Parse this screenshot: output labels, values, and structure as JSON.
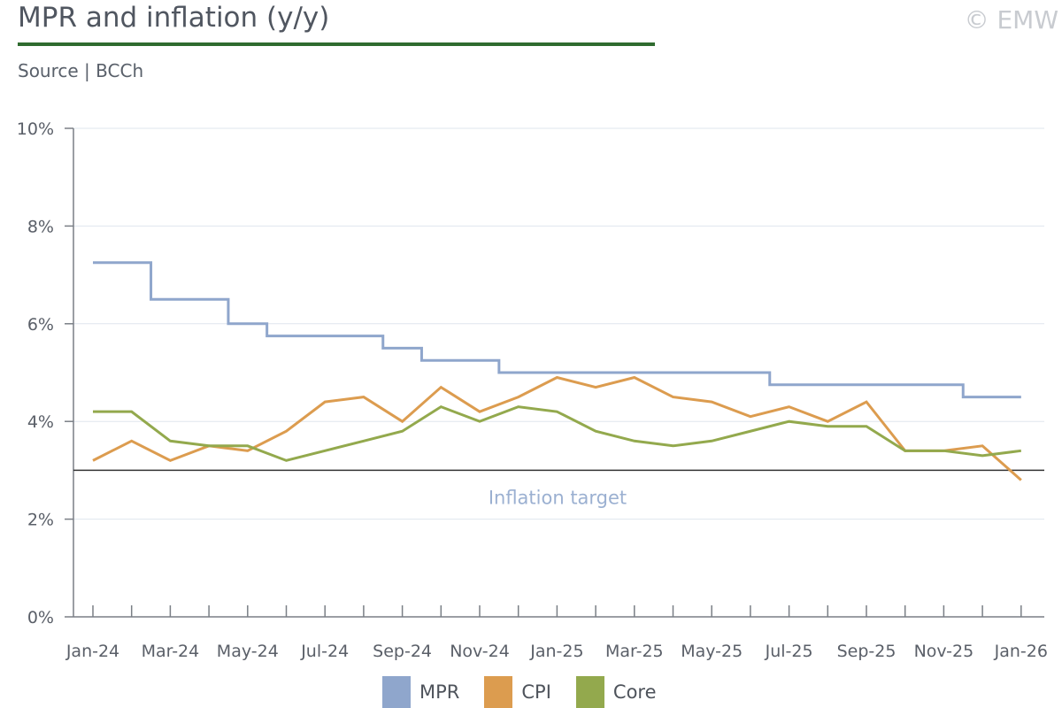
{
  "header": {
    "title": "MPR and inflation (y/y)",
    "subtitle": "Source | BCCh",
    "copyright": "© EMW"
  },
  "chart_data": {
    "type": "line",
    "title": "MPR and inflation (y/y)",
    "ylim": [
      0,
      10
    ],
    "yticks": [
      "0%",
      "2%",
      "4%",
      "6%",
      "8%",
      "10%"
    ],
    "x_labels": [
      "Jan-24",
      "Mar-24",
      "May-24",
      "Jul-24",
      "Sep-24",
      "Nov-24",
      "Jan-25",
      "Mar-25",
      "May-25",
      "Jul-25",
      "Sep-25",
      "Nov-25",
      "Jan-26"
    ],
    "grid": true,
    "legend_position": "bottom",
    "reference_line": {
      "label": "Inflation target",
      "value": 3
    },
    "series": [
      {
        "name": "MPR",
        "color": "#8fa6cc",
        "step": true,
        "points": [
          {
            "x": "Jan-24",
            "y": 7.25
          },
          {
            "x": "Feb-24",
            "y": 7.25
          },
          {
            "x": "Mar-24",
            "y": 6.5
          },
          {
            "x": "Apr-24",
            "y": 6.5
          },
          {
            "x": "May-24",
            "y": 6.0
          },
          {
            "x": "Jun-24",
            "y": 5.75
          },
          {
            "x": "Jul-24",
            "y": 5.75
          },
          {
            "x": "Aug-24",
            "y": 5.75
          },
          {
            "x": "Sep-24",
            "y": 5.5
          },
          {
            "x": "Oct-24",
            "y": 5.25
          },
          {
            "x": "Nov-24",
            "y": 5.25
          },
          {
            "x": "Dec-24",
            "y": 5.0
          },
          {
            "x": "Jan-25",
            "y": 5.0
          },
          {
            "x": "Feb-25",
            "y": 5.0
          },
          {
            "x": "Mar-25",
            "y": 5.0
          },
          {
            "x": "Apr-25",
            "y": 5.0
          },
          {
            "x": "May-25",
            "y": 5.0
          },
          {
            "x": "Jun-25",
            "y": 5.0
          },
          {
            "x": "Jul-25",
            "y": 4.75
          },
          {
            "x": "Aug-25",
            "y": 4.75
          },
          {
            "x": "Sep-25",
            "y": 4.75
          },
          {
            "x": "Oct-25",
            "y": 4.75
          },
          {
            "x": "Nov-25",
            "y": 4.75
          },
          {
            "x": "Dec-25",
            "y": 4.5
          },
          {
            "x": "Jan-26",
            "y": 4.5
          }
        ]
      },
      {
        "name": "CPI",
        "color": "#dc9c4f",
        "points": [
          {
            "x": "Jan-24",
            "y": 3.2
          },
          {
            "x": "Feb-24",
            "y": 3.6
          },
          {
            "x": "Mar-24",
            "y": 3.2
          },
          {
            "x": "Apr-24",
            "y": 3.5
          },
          {
            "x": "May-24",
            "y": 3.4
          },
          {
            "x": "Jun-24",
            "y": 3.8
          },
          {
            "x": "Jul-24",
            "y": 4.4
          },
          {
            "x": "Aug-24",
            "y": 4.5
          },
          {
            "x": "Sep-24",
            "y": 4.0
          },
          {
            "x": "Oct-24",
            "y": 4.7
          },
          {
            "x": "Nov-24",
            "y": 4.2
          },
          {
            "x": "Dec-24",
            "y": 4.5
          },
          {
            "x": "Jan-25",
            "y": 4.9
          },
          {
            "x": "Feb-25",
            "y": 4.7
          },
          {
            "x": "Mar-25",
            "y": 4.9
          },
          {
            "x": "Apr-25",
            "y": 4.5
          },
          {
            "x": "May-25",
            "y": 4.4
          },
          {
            "x": "Jun-25",
            "y": 4.1
          },
          {
            "x": "Jul-25",
            "y": 4.3
          },
          {
            "x": "Aug-25",
            "y": 4.0
          },
          {
            "x": "Sep-25",
            "y": 4.4
          },
          {
            "x": "Oct-25",
            "y": 3.4
          },
          {
            "x": "Nov-25",
            "y": 3.4
          },
          {
            "x": "Dec-25",
            "y": 3.5
          },
          {
            "x": "Jan-26",
            "y": 2.8
          }
        ]
      },
      {
        "name": "Core",
        "color": "#93a94d",
        "points": [
          {
            "x": "Jan-24",
            "y": 4.2
          },
          {
            "x": "Feb-24",
            "y": 4.2
          },
          {
            "x": "Mar-24",
            "y": 3.6
          },
          {
            "x": "Apr-24",
            "y": 3.5
          },
          {
            "x": "May-24",
            "y": 3.5
          },
          {
            "x": "Jun-24",
            "y": 3.2
          },
          {
            "x": "Jul-24",
            "y": 3.4
          },
          {
            "x": "Aug-24",
            "y": 3.6
          },
          {
            "x": "Sep-24",
            "y": 3.8
          },
          {
            "x": "Oct-24",
            "y": 4.3
          },
          {
            "x": "Nov-24",
            "y": 4.0
          },
          {
            "x": "Dec-24",
            "y": 4.3
          },
          {
            "x": "Jan-25",
            "y": 4.2
          },
          {
            "x": "Feb-25",
            "y": 3.8
          },
          {
            "x": "Mar-25",
            "y": 3.6
          },
          {
            "x": "Apr-25",
            "y": 3.5
          },
          {
            "x": "May-25",
            "y": 3.6
          },
          {
            "x": "Jun-25",
            "y": 3.8
          },
          {
            "x": "Jul-25",
            "y": 4.0
          },
          {
            "x": "Aug-25",
            "y": 3.9
          },
          {
            "x": "Sep-25",
            "y": 3.9
          },
          {
            "x": "Oct-25",
            "y": 3.4
          },
          {
            "x": "Nov-25",
            "y": 3.4
          },
          {
            "x": "Dec-25",
            "y": 3.3
          },
          {
            "x": "Jan-26",
            "y": 3.4
          }
        ]
      }
    ]
  }
}
